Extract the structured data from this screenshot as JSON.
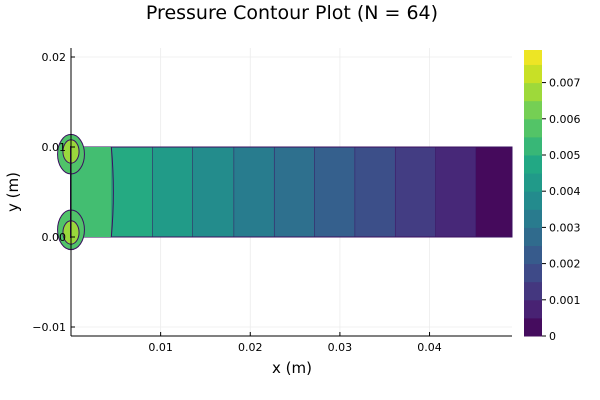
{
  "chart_data": {
    "type": "contour",
    "title": "Pressure Contour Plot (N = 64)",
    "xlabel": "x (m)",
    "ylabel": "y (m)",
    "xlim": [
      0.0,
      0.0492
    ],
    "ylim": [
      -0.011,
      0.021
    ],
    "x_ticks": [
      {
        "value": 0.01,
        "label": "0.01"
      },
      {
        "value": 0.02,
        "label": "0.02"
      },
      {
        "value": 0.03,
        "label": "0.03"
      },
      {
        "value": 0.04,
        "label": "0.04"
      }
    ],
    "y_ticks": [
      {
        "value": -0.01,
        "label": "−0.01"
      },
      {
        "value": 0.0,
        "label": "0.00"
      },
      {
        "value": 0.01,
        "label": "0.01"
      },
      {
        "value": 0.02,
        "label": "0.02"
      }
    ],
    "grid": true,
    "channel": {
      "x_min": 0.0,
      "x_max": 0.0492,
      "y_min": 0.0,
      "y_max": 0.01
    },
    "contour_bands": [
      {
        "x_start": 0.0,
        "x_end": 0.0045,
        "pressure": 0.0052
      },
      {
        "x_start": 0.0045,
        "x_end": 0.0091,
        "pressure": 0.0048
      },
      {
        "x_start": 0.0091,
        "x_end": 0.0136,
        "pressure": 0.0043
      },
      {
        "x_start": 0.0136,
        "x_end": 0.0182,
        "pressure": 0.0038
      },
      {
        "x_start": 0.0182,
        "x_end": 0.0227,
        "pressure": 0.0033
      },
      {
        "x_start": 0.0227,
        "x_end": 0.0272,
        "pressure": 0.0029
      },
      {
        "x_start": 0.0272,
        "x_end": 0.0317,
        "pressure": 0.0024
      },
      {
        "x_start": 0.0317,
        "x_end": 0.0362,
        "pressure": 0.0019
      },
      {
        "x_start": 0.0362,
        "x_end": 0.0407,
        "pressure": 0.0014
      },
      {
        "x_start": 0.0407,
        "x_end": 0.0452,
        "pressure": 0.0009
      },
      {
        "x_start": 0.0452,
        "x_end": 0.0492,
        "pressure": 0.0002
      }
    ],
    "inlet_features": [
      {
        "x": 0.0,
        "y": 0.0095,
        "rx": 0.0009,
        "ry": 0.0013,
        "pressure": 0.0067
      },
      {
        "x": 0.0,
        "y": 0.0092,
        "rx": 0.0015,
        "ry": 0.0022,
        "pressure": 0.0057
      },
      {
        "x": 0.0,
        "y": 0.0005,
        "rx": 0.0009,
        "ry": 0.0013,
        "pressure": 0.0067
      },
      {
        "x": 0.0,
        "y": 0.0008,
        "rx": 0.0015,
        "ry": 0.0022,
        "pressure": 0.0057
      }
    ],
    "colorbar": {
      "min": 0.0,
      "max": 0.0079,
      "levels": [
        0.0,
        0.0005,
        0.001,
        0.0015,
        0.002,
        0.0025,
        0.003,
        0.0035,
        0.004,
        0.0045,
        0.005,
        0.0055,
        0.006,
        0.0065,
        0.007,
        0.0075,
        0.0079
      ],
      "ticks": [
        {
          "value": 0.0,
          "label": "0"
        },
        {
          "value": 0.001,
          "label": "0.001"
        },
        {
          "value": 0.002,
          "label": "0.002"
        },
        {
          "value": 0.003,
          "label": "0.003"
        },
        {
          "value": 0.004,
          "label": "0.004"
        },
        {
          "value": 0.005,
          "label": "0.005"
        },
        {
          "value": 0.006,
          "label": "0.006"
        },
        {
          "value": 0.007,
          "label": "0.007"
        }
      ],
      "colormap": "viridis"
    }
  }
}
